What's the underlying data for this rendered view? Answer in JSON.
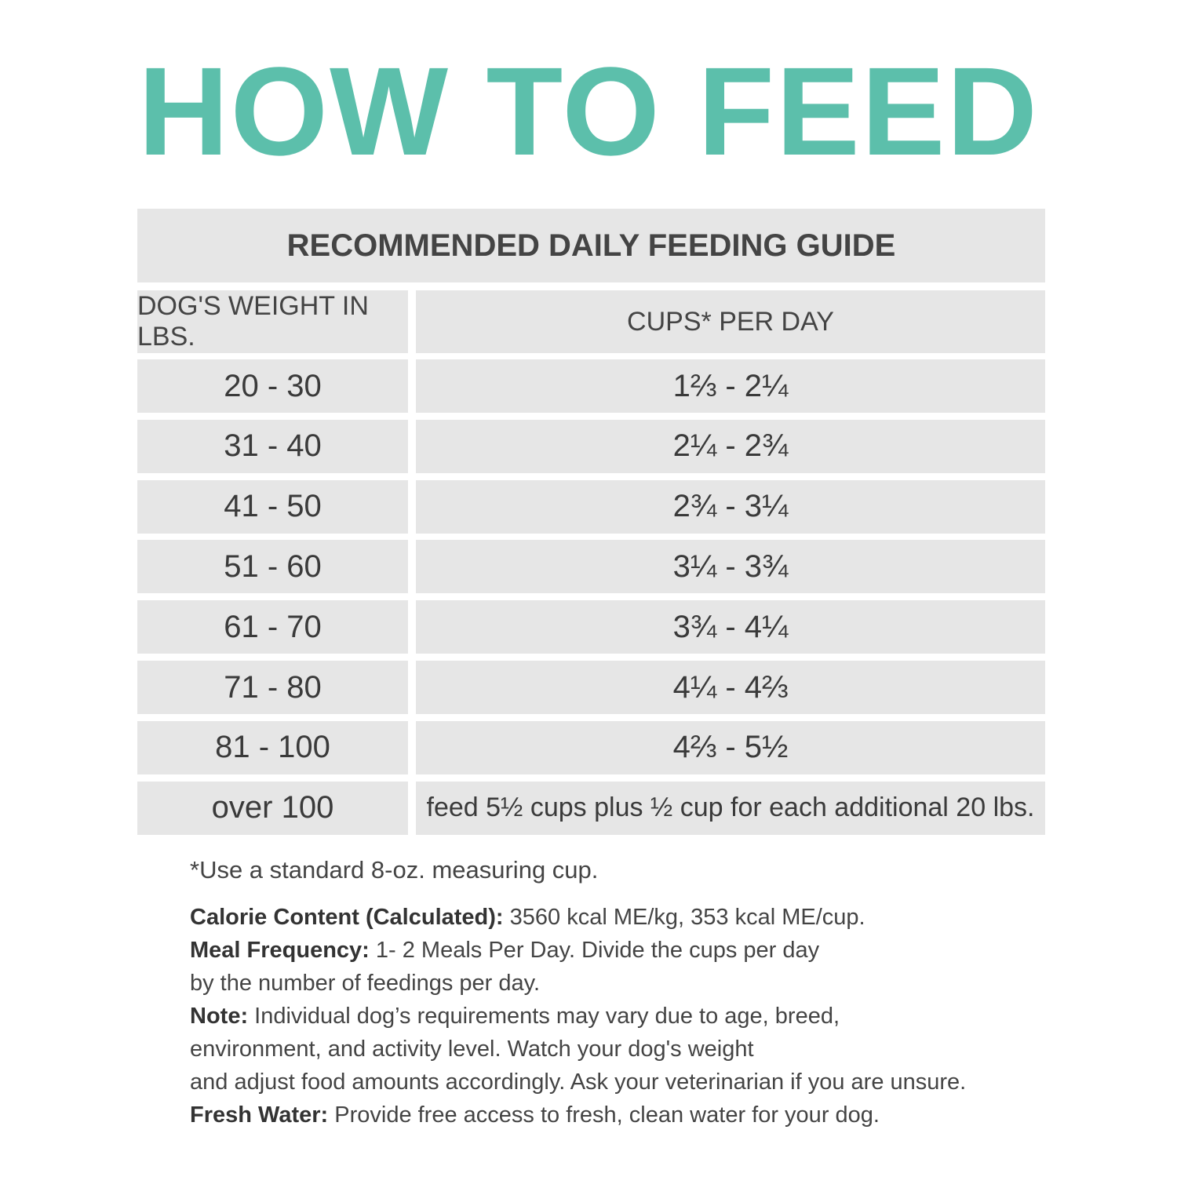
{
  "header": {
    "title": "HOW TO FEED"
  },
  "table": {
    "title": "RECOMMENDED DAILY FEEDING GUIDE",
    "columns": [
      "DOG'S WEIGHT IN LBS.",
      "CUPS* PER DAY"
    ],
    "rows": [
      [
        "20 - 30",
        "1⅔ - 2¼"
      ],
      [
        "31 - 40",
        "2¼ - 2¾"
      ],
      [
        "41 - 50",
        "2¾ - 3¼"
      ],
      [
        "51 - 60",
        "3¼ - 3¾"
      ],
      [
        "61 - 70",
        "3¾ - 4¼"
      ],
      [
        "71 - 80",
        "4¼ - 4⅔"
      ],
      [
        "81 - 100",
        "4⅔ - 5½"
      ],
      [
        "over 100",
        "feed 5½ cups plus ½ cup for each additional 20 lbs."
      ]
    ]
  },
  "footnote": "*Use a standard 8-oz. measuring cup.",
  "notes": [
    {
      "label": "Calorie Content (Calculated):",
      "text": "  3560 kcal ME/kg, 353 kcal ME/cup."
    },
    {
      "label": "Meal Frequency:",
      "text": " 1- 2 Meals Per Day. Divide the cups per day\n by the number of feedings per day."
    },
    {
      "label": "Note:",
      "text": " Individual dog’s requirements may vary due to age, breed,\nenvironment, and activity level. Watch your dog's weight\nand adjust food amounts accordingly. Ask your veterinarian if you are unsure."
    },
    {
      "label": "Fresh Water:",
      "text": " Provide free access to fresh, clean water for your dog."
    }
  ]
}
